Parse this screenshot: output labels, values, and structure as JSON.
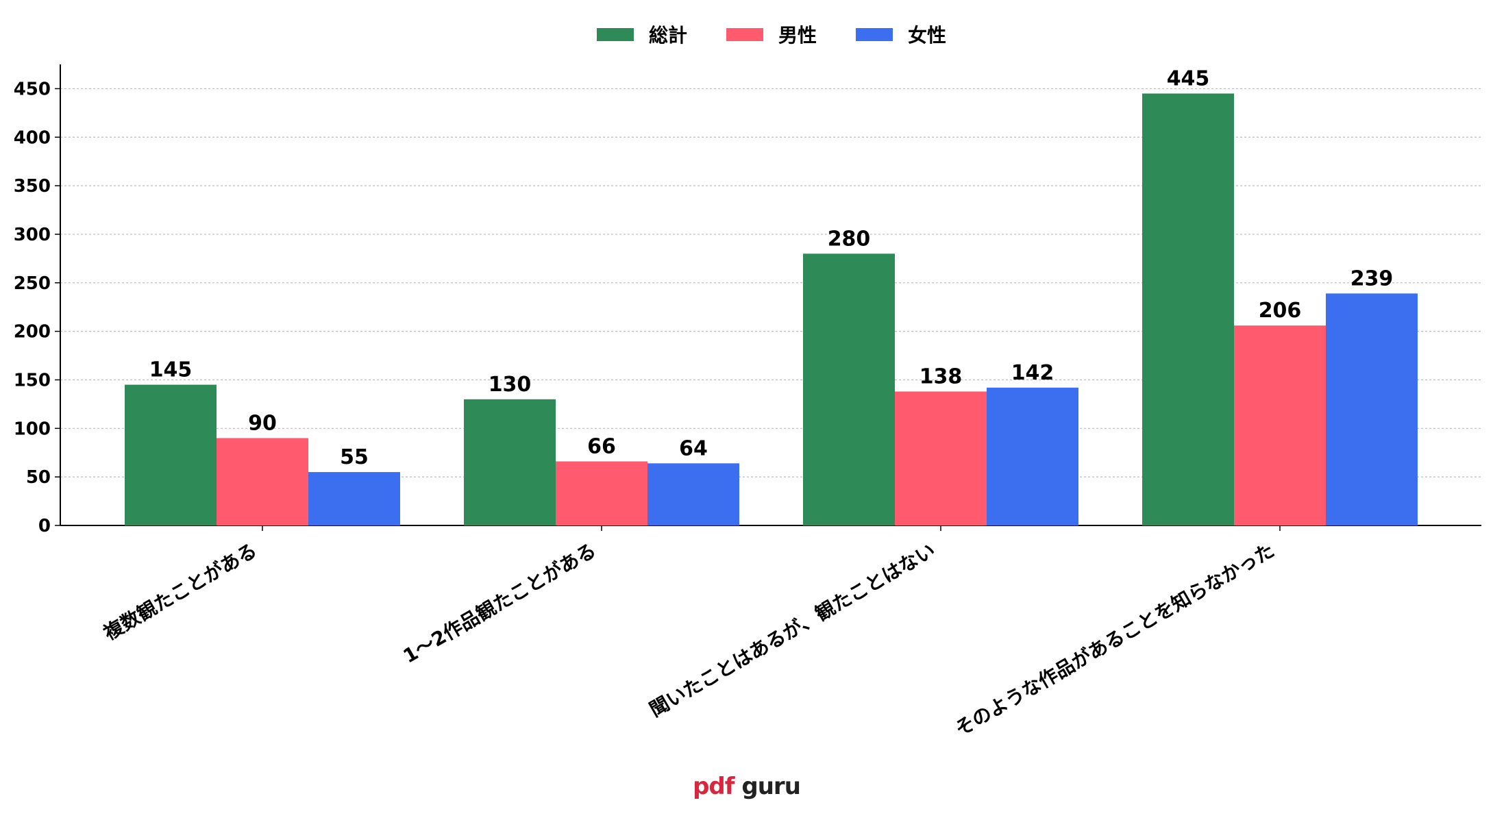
{
  "chart_data": {
    "type": "bar",
    "categories": [
      "複数観たことがある",
      "1～2作品観たことがある",
      "聞いたことはあるが、観たことはない",
      "そのような作品があることを知らなかった"
    ],
    "series": [
      {
        "name": "総計",
        "color": "#2e8b57",
        "values": [
          145,
          130,
          280,
          445
        ]
      },
      {
        "name": "男性",
        "color": "#ff5a6e",
        "values": [
          90,
          66,
          138,
          206
        ]
      },
      {
        "name": "女性",
        "color": "#3c6ff0",
        "values": [
          55,
          64,
          142,
          239
        ]
      }
    ],
    "ylim": [
      0,
      475
    ],
    "yticks": [
      0,
      50,
      100,
      150,
      200,
      250,
      300,
      350,
      400,
      450
    ],
    "grid": true,
    "legend_position": "top-center"
  },
  "logo": {
    "pdf": "pdf",
    "guru": " guru"
  }
}
